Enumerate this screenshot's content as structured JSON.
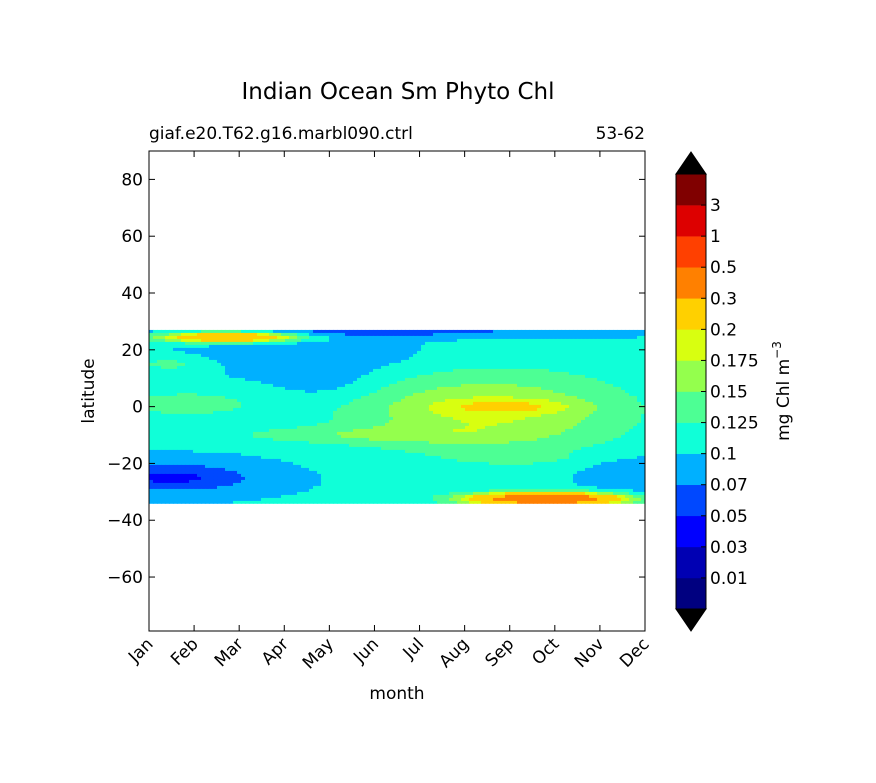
{
  "chart_data": {
    "type": "heatmap",
    "title": "Indian Ocean Sm Phyto Chl",
    "subtitle_left": "giaf.e20.T62.g16.marbl090.ctrl",
    "subtitle_right": "53-62",
    "xlabel": "month",
    "ylabel": "latitude",
    "x_categories": [
      "Jan",
      "Feb",
      "Mar",
      "Apr",
      "May",
      "Jun",
      "Jul",
      "Aug",
      "Sep",
      "Oct",
      "Nov",
      "Dec"
    ],
    "y_ticks": [
      80,
      60,
      40,
      20,
      0,
      -20,
      -40,
      -60
    ],
    "y_tick_labels": [
      "80",
      "60",
      "40",
      "20",
      "0",
      "−20",
      "−40",
      "−60"
    ],
    "ylim": [
      -79,
      90
    ],
    "data_lat_range": [
      -34,
      27
    ],
    "colorbar": {
      "label": "mg Chl m",
      "label_exponent": "−3",
      "levels": [
        0.01,
        0.03,
        0.05,
        0.07,
        0.1,
        0.125,
        0.15,
        0.175,
        0.2,
        0.3,
        0.5,
        1,
        3
      ],
      "tick_labels": [
        "0.01",
        "0.03",
        "0.05",
        "0.07",
        "0.1",
        "0.125",
        "0.15",
        "0.175",
        "0.2",
        "0.3",
        "0.5",
        "1",
        "3"
      ],
      "colors": [
        "#000080",
        "#0000b3",
        "#0000ff",
        "#0048ff",
        "#00b0ff",
        "#10ffd8",
        "#4dff94",
        "#94ff4d",
        "#d8ff10",
        "#ffd000",
        "#ff8000",
        "#ff4000",
        "#dd0000",
        "#800000"
      ],
      "extend": "both"
    },
    "field_levels": [
      0.1,
      0.1,
      0.1,
      0.07,
      0.05,
      0.03,
      0.01
    ]
  }
}
